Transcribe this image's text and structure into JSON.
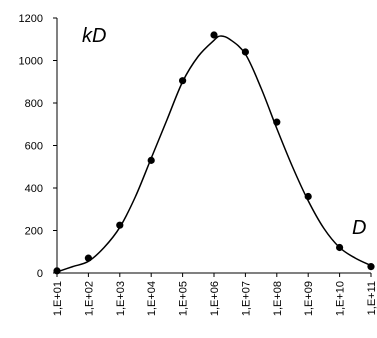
{
  "chart_data": {
    "type": "scatter",
    "title": "",
    "xlabel": "",
    "ylabel": "",
    "x_scale": "log",
    "categories": [
      "1,E+01",
      "1,E+02",
      "1,E+03",
      "1,E+04",
      "1,E+05",
      "1,E+06",
      "1,E+07",
      "1,E+08",
      "1,E+09",
      "1,E+10",
      "1,E+11"
    ],
    "xlim": [
      10,
      100000000000
    ],
    "ylim": [
      0,
      1200
    ],
    "y_ticks": [
      0,
      200,
      400,
      600,
      800,
      1000,
      1200
    ],
    "grid": false,
    "legend": "none",
    "annotations": {
      "top_left": "kD",
      "right": "D"
    },
    "series": [
      {
        "style": "points",
        "x": [
          10,
          100,
          1000,
          10000,
          100000,
          1000000,
          10000000,
          100000000,
          1000000000,
          10000000000,
          100000000000
        ],
        "y": [
          10,
          70,
          225,
          530,
          905,
          1120,
          1040,
          710,
          360,
          120,
          30
        ]
      },
      {
        "style": "smooth-line",
        "x": [
          10,
          31.6,
          100,
          316,
          1000,
          3160,
          10000,
          31600,
          100000,
          316000,
          1000000,
          1585000,
          3160000,
          10000000,
          31600000,
          100000000,
          316000000,
          1000000000,
          3160000000,
          10000000000,
          31600000000,
          100000000000
        ],
        "y": [
          5,
          30,
          55,
          120,
          215,
          360,
          540,
          720,
          900,
          1020,
          1095,
          1115,
          1100,
          1030,
          870,
          680,
          500,
          340,
          210,
          120,
          70,
          35
        ]
      }
    ],
    "colors": {
      "marks": "#000000",
      "axis": "#000000"
    }
  }
}
